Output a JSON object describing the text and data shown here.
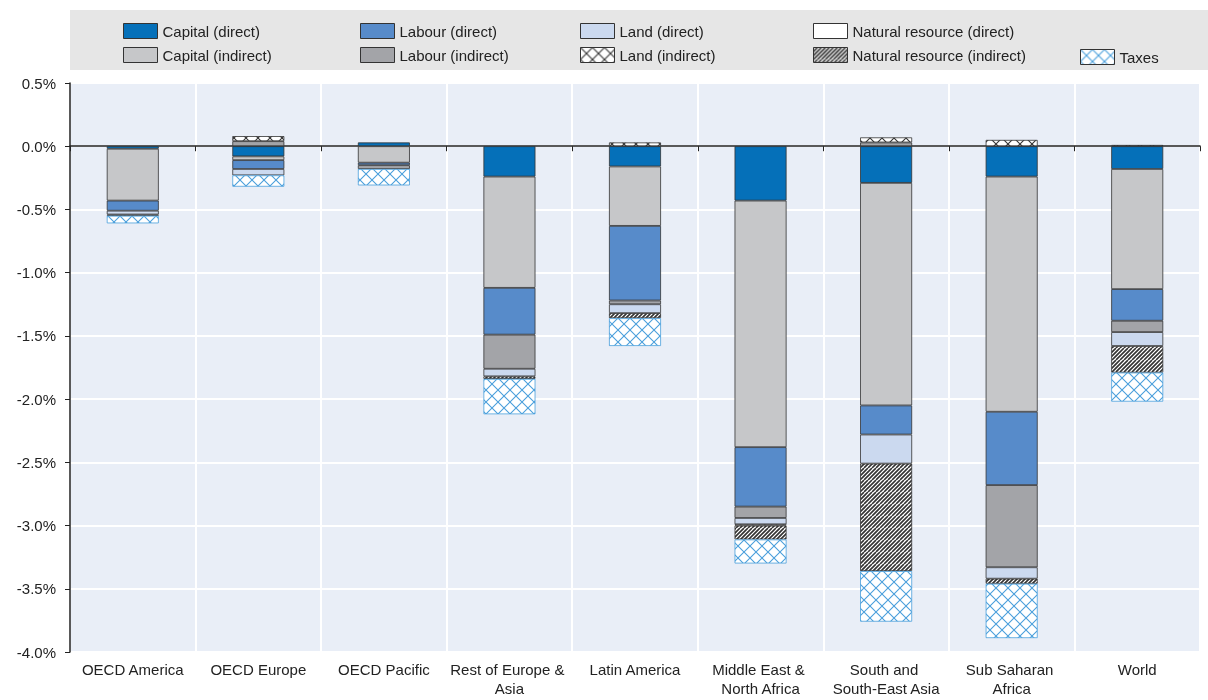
{
  "chart_data": {
    "type": "bar",
    "stacked": true,
    "categories": [
      "OECD America",
      "OECD Europe",
      "OECD Pacific",
      "Rest of Europe & Asia",
      "Latin America",
      "Middle East & North Africa",
      "South and South-East Asia",
      "Sub Saharan Africa",
      "World"
    ],
    "series": [
      {
        "name": "Capital (direct)",
        "color": "#0570b9",
        "values": [
          -0.02,
          -0.08,
          0.03,
          -0.24,
          -0.16,
          -0.43,
          -0.29,
          -0.24,
          -0.18
        ]
      },
      {
        "name": "Capital (indirect)",
        "color": "#c6c7c9",
        "values": [
          -0.41,
          -0.03,
          -0.13,
          -0.88,
          -0.47,
          -1.95,
          -1.76,
          -1.86,
          -0.95
        ]
      },
      {
        "name": "Labour (direct)",
        "color": "#578bca",
        "values": [
          -0.08,
          -0.07,
          -0.02,
          -0.37,
          -0.59,
          -0.47,
          -0.23,
          -0.58,
          -0.25
        ]
      },
      {
        "name": "Labour (indirect)",
        "color": "#a3a4a8",
        "values": [
          null,
          0.04,
          -0.03,
          -0.27,
          -0.03,
          -0.09,
          0.03,
          -0.65,
          -0.09
        ]
      },
      {
        "name": "Land (direct)",
        "color": "#cbd9ef",
        "values": [
          -0.03,
          -0.05,
          null,
          -0.06,
          -0.07,
          -0.05,
          -0.23,
          -0.09,
          -0.11
        ]
      },
      {
        "name": "Land (indirect)",
        "color": "#333333",
        "values": [
          0,
          0.04,
          0,
          0,
          0.03,
          -0.01,
          0.04,
          0.05,
          0.01
        ]
      },
      {
        "name": "Natural resource (direct)",
        "color": "#ffffff",
        "values": [
          0,
          0,
          0,
          0,
          0,
          0,
          0,
          0,
          0
        ]
      },
      {
        "name": "Natural resource (indirect)",
        "color": "#333333",
        "values": [
          -0.01,
          0,
          0,
          -0.02,
          -0.04,
          -0.11,
          -0.85,
          -0.04,
          -0.21
        ]
      },
      {
        "name": "Taxes",
        "color": "#4a9fdc",
        "values": [
          -0.06,
          -0.09,
          -0.13,
          -0.28,
          -0.22,
          -0.19,
          -0.4,
          -0.43,
          -0.23
        ]
      }
    ],
    "ylim": [
      -4,
      0.5
    ],
    "yticks": [
      {
        "value": -4,
        "label": "-4.0%"
      },
      {
        "value": -3.5,
        "label": "-3.5%"
      },
      {
        "value": -3,
        "label": "-3.0%"
      },
      {
        "value": -2.5,
        "label": "-2.5%"
      },
      {
        "value": -2,
        "label": "-2.0%"
      },
      {
        "value": -1.5,
        "label": "-1.5%"
      },
      {
        "value": -1,
        "label": "-1.0%"
      },
      {
        "value": -0.5,
        "label": "-0.5%"
      },
      {
        "value": 0,
        "label": "0.0%"
      },
      {
        "value": 0.5,
        "label": "0.5%"
      }
    ],
    "grid": true,
    "legend": "top"
  }
}
